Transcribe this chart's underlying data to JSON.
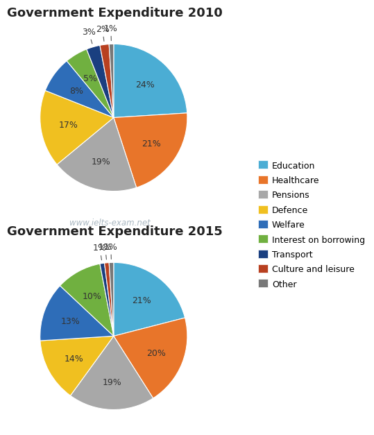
{
  "title1": "Government Expenditure 2010",
  "title2": "Government Expenditure 2015",
  "categories": [
    "Education",
    "Healthcare",
    "Pensions",
    "Defence",
    "Welfare",
    "Interest on borrowing",
    "Transport",
    "Culture and leisure",
    "Other"
  ],
  "colors": [
    "#4badd4",
    "#e8752a",
    "#a8a8a8",
    "#f0c020",
    "#2e6db8",
    "#70b040",
    "#1a3f80",
    "#b84020",
    "#787878"
  ],
  "values_2010": [
    24,
    21,
    19,
    17,
    8,
    5,
    3,
    2,
    1
  ],
  "values_2015": [
    21,
    20,
    19,
    14,
    13,
    10,
    1,
    1,
    1
  ],
  "watermark": "www.ielts-exam.net"
}
